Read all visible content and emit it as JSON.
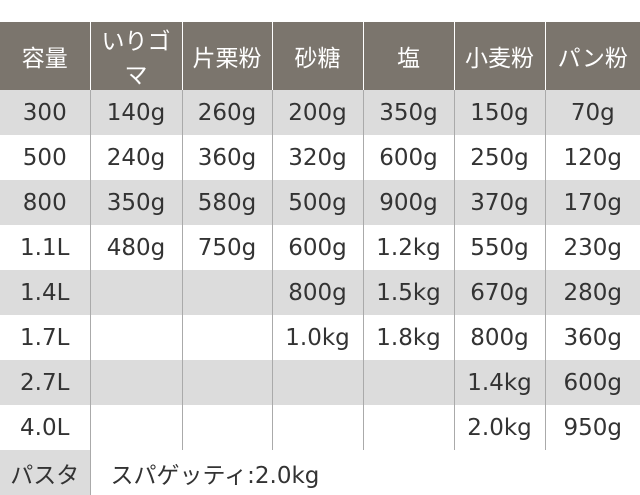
{
  "table": {
    "header": [
      "容量",
      "いりゴマ",
      "片栗粉",
      "砂糖",
      "塩",
      "小麦粉",
      "パン粉"
    ],
    "rows": [
      [
        "300",
        "140g",
        "260g",
        "200g",
        "350g",
        "150g",
        "70g"
      ],
      [
        "500",
        "240g",
        "360g",
        "320g",
        "600g",
        "250g",
        "120g"
      ],
      [
        "800",
        "350g",
        "580g",
        "500g",
        "900g",
        "370g",
        "170g"
      ],
      [
        "1.1L",
        "480g",
        "750g",
        "600g",
        "1.2kg",
        "550g",
        "230g"
      ],
      [
        "1.4L",
        null,
        null,
        "800g",
        "1.5kg",
        "670g",
        "280g"
      ],
      [
        "1.7L",
        null,
        null,
        "1.0kg",
        "1.8kg",
        "800g",
        "360g"
      ],
      [
        "2.7L",
        null,
        null,
        null,
        null,
        "1.4kg",
        "600g"
      ],
      [
        "4.0L",
        null,
        null,
        null,
        null,
        "2.0kg",
        "950g"
      ]
    ],
    "footer": {
      "label": "パスタ",
      "note": "スパゲッティ:2.0kg"
    }
  }
}
